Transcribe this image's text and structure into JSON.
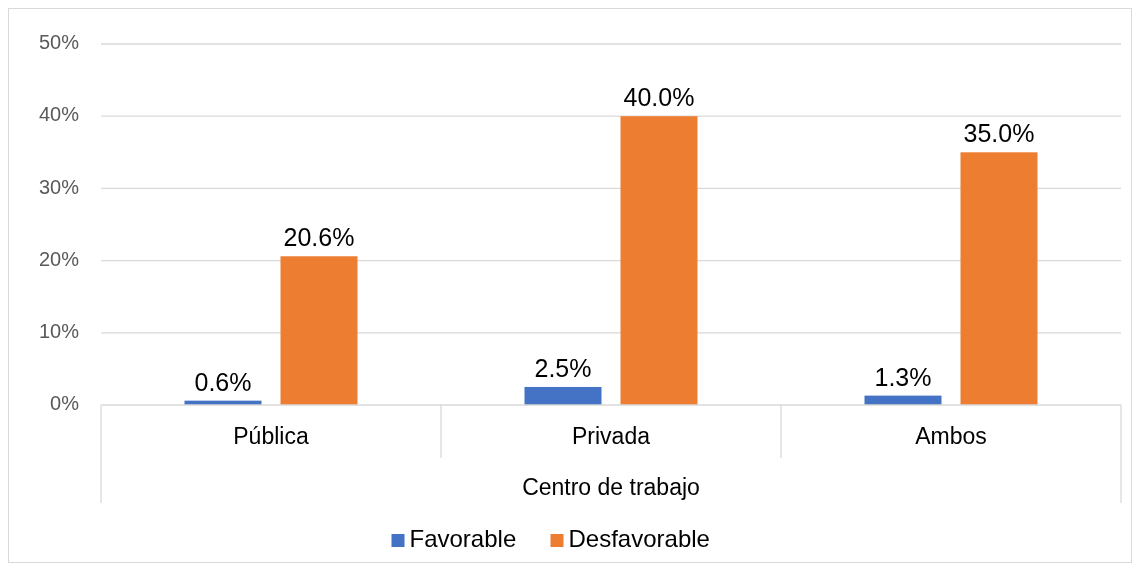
{
  "chart_data": {
    "type": "bar",
    "xlabel": "Centro de trabajo",
    "categories": [
      "Pública",
      "Privada",
      "Ambos"
    ],
    "series": [
      {
        "name": "Favorable",
        "color": "#4472c4",
        "values": [
          0.6,
          2.5,
          1.3
        ],
        "value_labels": [
          "0.6%",
          "2.5%",
          "1.3%"
        ]
      },
      {
        "name": "Desfavorable",
        "color": "#ed7d31",
        "values": [
          20.6,
          40.0,
          35.0
        ],
        "value_labels": [
          "20.6%",
          "40.0%",
          "35.0%"
        ]
      }
    ],
    "ylim": [
      0,
      50
    ],
    "yticks": [
      {
        "value": 0,
        "label": "0%"
      },
      {
        "value": 10,
        "label": "10%"
      },
      {
        "value": 20,
        "label": "20%"
      },
      {
        "value": 30,
        "label": "30%"
      },
      {
        "value": 40,
        "label": "40%"
      },
      {
        "value": 50,
        "label": "50%"
      }
    ],
    "grid": "y",
    "legend": "bottom"
  }
}
